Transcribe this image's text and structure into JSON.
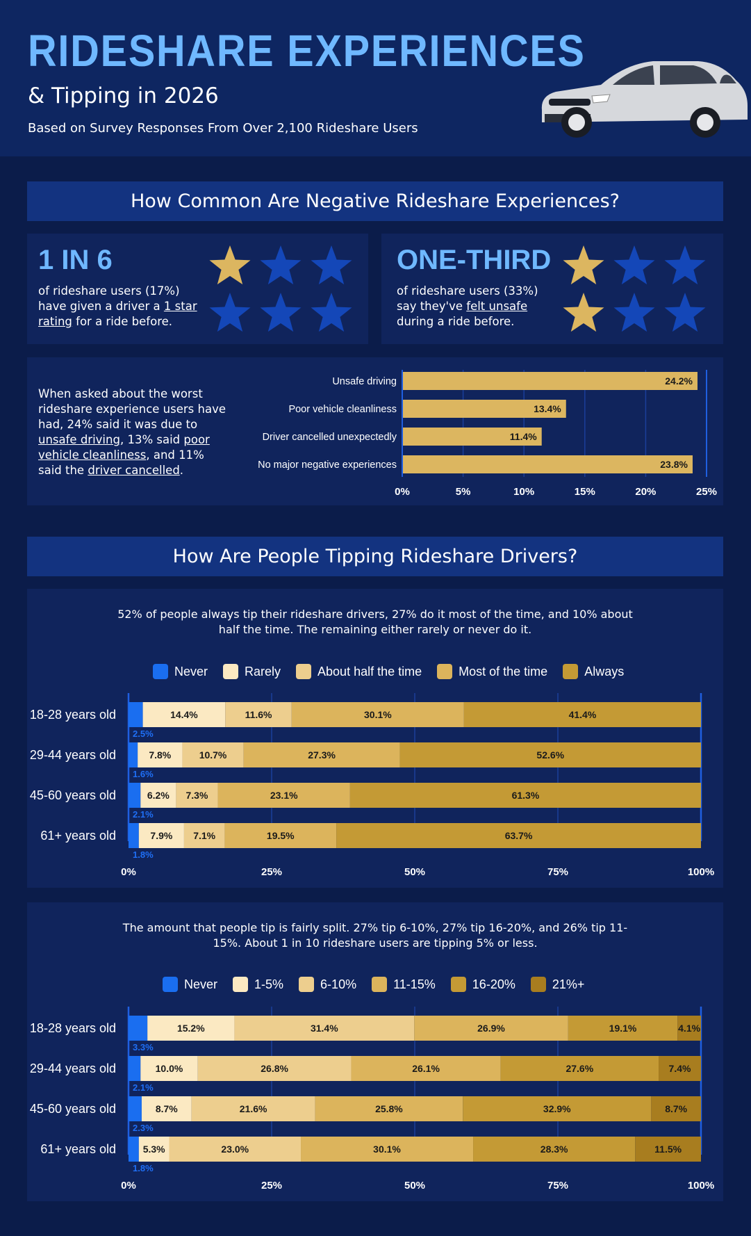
{
  "header": {
    "title": "RIDESHARE EXPERIENCES",
    "subtitle": "& Tipping in 2026",
    "tagline": "Based on Survey Responses From Over 2,100 Rideshare Users"
  },
  "section1": {
    "heading": "How Common Are Negative Rideshare Experiences?",
    "stat1": {
      "big": "1 IN 6",
      "line1": "of rideshare users (17%)",
      "line2_pre": "have given a driver a ",
      "line2_link": "1 star",
      "line3_link": "rating",
      "line3_post": " for a ride before.",
      "stars_filled": 1,
      "stars_total": 6
    },
    "stat2": {
      "big": "ONE-THIRD",
      "line1": "of rideshare users (33%)",
      "line2_pre": "say they've ",
      "line2_link": "felt unsafe",
      "line3": "during a ride before.",
      "stars_filled": 2,
      "stars_total": 6
    },
    "worst": {
      "text_a": "When asked about the worst rideshare experience users have had, 24% said it was due to ",
      "link1": "unsafe driving",
      "text_b": ", 13% said ",
      "link2": "poor vehicle cleanliness",
      "text_c": ", and 11% said the ",
      "link3": "driver cancelled",
      "text_d": "."
    }
  },
  "section2": {
    "heading": "How Are People Tipping Rideshare Drivers?",
    "freq_text": "52% of people always tip their rideshare drivers, 27% do it most of the time, and 10% about half the time. The remaining either rarely or never do it.",
    "amount_text": "The amount that people tip is fairly split. 27% tip 6-10%, 27% tip 16-20%, and 26% tip 11-15%. About 1 in 10 rideshare users are tipping 5% or less."
  },
  "chart_data": [
    {
      "type": "bar",
      "orientation": "horizontal",
      "categories": [
        "Unsafe driving",
        "Poor vehicle cleanliness",
        "Driver cancelled unexpectedly",
        "No major negative experiences"
      ],
      "values": [
        24.2,
        13.4,
        11.4,
        23.8
      ],
      "value_labels": [
        "24.2%",
        "13.4%",
        "11.4%",
        "23.8%"
      ],
      "xlim": [
        0,
        25
      ],
      "xticks": [
        "0%",
        "5%",
        "10%",
        "15%",
        "20%",
        "25%"
      ],
      "color": "#dcb660",
      "grid": true
    },
    {
      "type": "bar",
      "stacked": true,
      "orientation": "horizontal",
      "categories": [
        "18-28 years old",
        "29-44 years old",
        "45-60 years old",
        "61+ years old"
      ],
      "series": [
        {
          "name": "Never",
          "color": "#1a6ef0",
          "values": [
            2.5,
            1.6,
            2.1,
            1.8
          ],
          "labels": [
            "2.5%",
            "1.6%",
            "2.1%",
            "1.8%"
          ]
        },
        {
          "name": "Rarely",
          "color": "#fbe9c2",
          "values": [
            14.4,
            7.8,
            6.2,
            7.9
          ],
          "labels": [
            "14.4%",
            "7.8%",
            "6.2%",
            "7.9%"
          ]
        },
        {
          "name": "About half the time",
          "color": "#edce8e",
          "values": [
            11.6,
            10.7,
            7.3,
            7.1
          ],
          "labels": [
            "11.6%",
            "10.7%",
            "7.3%",
            "7.1%"
          ]
        },
        {
          "name": "Most of the time",
          "color": "#dcb45c",
          "values": [
            30.1,
            27.3,
            23.1,
            19.5
          ],
          "labels": [
            "30.1%",
            "27.3%",
            "23.1%",
            "19.5%"
          ]
        },
        {
          "name": "Always",
          "color": "#c49a35",
          "values": [
            41.4,
            52.6,
            61.3,
            63.7
          ],
          "labels": [
            "41.4%",
            "52.6%",
            "61.3%",
            "63.7%"
          ]
        }
      ],
      "xlim": [
        0,
        100
      ],
      "xticks": [
        "0%",
        "25%",
        "50%",
        "75%",
        "100%"
      ],
      "legend": "top"
    },
    {
      "type": "bar",
      "stacked": true,
      "orientation": "horizontal",
      "categories": [
        "18-28 years old",
        "29-44 years old",
        "45-60 years old",
        "61+ years old"
      ],
      "series": [
        {
          "name": "Never",
          "color": "#1a6ef0",
          "values": [
            3.3,
            2.1,
            2.3,
            1.8
          ],
          "labels": [
            "3.3%",
            "2.1%",
            "2.3%",
            "1.8%"
          ]
        },
        {
          "name": "1-5%",
          "color": "#fbe9c2",
          "values": [
            15.2,
            10.0,
            8.7,
            5.3
          ],
          "labels": [
            "15.2%",
            "10.0%",
            "8.7%",
            "5.3%"
          ]
        },
        {
          "name": "6-10%",
          "color": "#edce8e",
          "values": [
            31.4,
            26.8,
            21.6,
            23.0
          ],
          "labels": [
            "31.4%",
            "26.8%",
            "21.6%",
            "23.0%"
          ]
        },
        {
          "name": "11-15%",
          "color": "#dcb45c",
          "values": [
            26.9,
            26.1,
            25.8,
            30.1
          ],
          "labels": [
            "26.9%",
            "26.1%",
            "25.8%",
            "30.1%"
          ]
        },
        {
          "name": "16-20%",
          "color": "#c49a35",
          "values": [
            19.1,
            27.6,
            32.9,
            28.3
          ],
          "labels": [
            "19.1%",
            "27.6%",
            "32.9%",
            "28.3%"
          ]
        },
        {
          "name": "21%+",
          "color": "#a87d1f",
          "values": [
            4.1,
            7.4,
            8.7,
            11.5
          ],
          "labels": [
            "4.1%",
            "7.4%",
            "8.7%",
            "11.5%"
          ]
        }
      ],
      "xlim": [
        0,
        100
      ],
      "xticks": [
        "0%",
        "25%",
        "50%",
        "75%",
        "100%"
      ],
      "legend": "top"
    }
  ]
}
